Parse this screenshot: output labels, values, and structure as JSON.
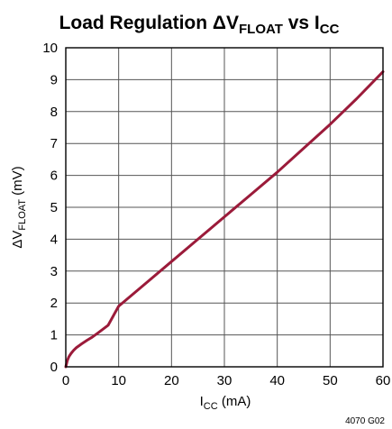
{
  "chart_data": {
    "type": "line",
    "title": {
      "prefix": "Load Regulation ΔV",
      "sub1": "FLOAT",
      "middle": " vs I",
      "sub2": "CC"
    },
    "xlabel": {
      "main": "I",
      "sub": "CC",
      "unit": " (mA)"
    },
    "ylabel": {
      "main": "ΔV",
      "sub": "FLOAT",
      "unit": " (mV)"
    },
    "xlim": [
      0,
      60
    ],
    "ylim": [
      0,
      10
    ],
    "xticks": [
      "0",
      "10",
      "20",
      "30",
      "40",
      "50",
      "60"
    ],
    "yticks": [
      "0",
      "1",
      "2",
      "3",
      "4",
      "5",
      "6",
      "7",
      "8",
      "9",
      "10"
    ],
    "grid": true,
    "line_color": "#9b1b3a",
    "series": [
      {
        "x": [
          0,
          0.3,
          0.6,
          1,
          1.5,
          2,
          3,
          4,
          5,
          6,
          8,
          10,
          15,
          20,
          25,
          30,
          35,
          40,
          45,
          50,
          55,
          60
        ],
        "y": [
          0,
          0.2,
          0.32,
          0.42,
          0.52,
          0.6,
          0.72,
          0.83,
          0.93,
          1.05,
          1.3,
          1.9,
          2.6,
          3.3,
          4.0,
          4.7,
          5.4,
          6.1,
          6.85,
          7.6,
          8.4,
          9.25
        ]
      }
    ],
    "code": "4070 G02"
  }
}
